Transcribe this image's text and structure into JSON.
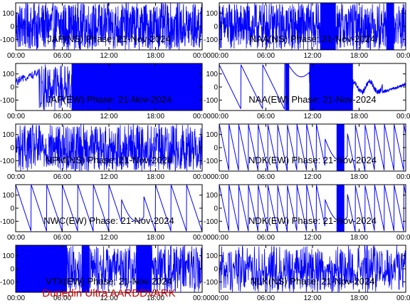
{
  "footer": "Dunedin Ultra AARDDVARK",
  "colors": {
    "trace": "#0000ff",
    "axes": "#000000",
    "footer": "#cc0000"
  },
  "chart_data": [
    {
      "type": "line",
      "title": "JAP(NS) Phase: 21-Nov-2024",
      "ylim": [
        -180,
        180
      ],
      "xlim": [
        "00:00",
        "24:00"
      ],
      "yticks": [
        "100",
        "0",
        "-100"
      ],
      "xticks": [
        "00:00",
        "06:00",
        "12:00",
        "18:00",
        "00:00"
      ],
      "pattern": "noise",
      "density": 14,
      "fill_ranges": []
    },
    {
      "type": "line",
      "title": "NAA(NS) Phase: 21-Nov-2024",
      "ylim": [
        -180,
        180
      ],
      "xlim": [
        "00:00",
        "24:00"
      ],
      "yticks": [
        "100",
        "0",
        "-100"
      ],
      "xticks": [
        "00:00",
        "06:00",
        "12:00",
        "18:00",
        "00:00"
      ],
      "pattern": "noise",
      "density": 14,
      "fill_ranges": [
        [
          13,
          15
        ],
        [
          21.5,
          22.5
        ]
      ]
    },
    {
      "type": "line",
      "title": "JAP(EW) Phase: 21-Nov-2024",
      "ylim": [
        -180,
        180
      ],
      "xlim": [
        "00:00",
        "24:00"
      ],
      "yticks": [
        "100",
        "0",
        "-100"
      ],
      "xticks": [
        "00:00",
        "06:00",
        "12:00",
        "18:00",
        "00:00"
      ],
      "pattern": "noise",
      "density": 10,
      "fill_ranges": [
        [
          7.2,
          24
        ]
      ]
    },
    {
      "type": "line",
      "title": "NAA(EW) Phase: 21-Nov-2024",
      "ylim": [
        -180,
        180
      ],
      "xlim": [
        "00:00",
        "24:00"
      ],
      "yticks": [
        "100",
        "0",
        "-100"
      ],
      "xticks": [
        "00:00",
        "06:00",
        "12:00",
        "18:00",
        "00:00"
      ],
      "pattern": "mixed",
      "fill_ranges": [
        [
          8.5,
          9
        ],
        [
          11.6,
          17.2
        ]
      ]
    },
    {
      "type": "line",
      "title": "NPM(NS) Phase: 21-Nov-2024",
      "ylim": [
        -180,
        180
      ],
      "xlim": [
        "00:00",
        "24:00"
      ],
      "yticks": [
        "100",
        "0",
        "-100"
      ],
      "xticks": [
        "00:00",
        "06:00",
        "12:00",
        "18:00",
        "00:00"
      ],
      "pattern": "noise",
      "density": 12,
      "fill_ranges": []
    },
    {
      "type": "line",
      "title": "NDK(EW) Phase: 21-Nov-2024",
      "ylim": [
        -180,
        180
      ],
      "xlim": [
        "00:00",
        "24:00"
      ],
      "yticks": [
        "100",
        "0",
        "-100"
      ],
      "xticks": [
        "00:00",
        "06:00",
        "12:00",
        "18:00",
        "00:00"
      ],
      "pattern": "saw",
      "period": 1.25,
      "fill_ranges": [
        [
          15.1,
          16.1
        ]
      ]
    },
    {
      "type": "line",
      "title": "NWC(EW) Phase: 21-Nov-2024",
      "ylim": [
        -180,
        180
      ],
      "xlim": [
        "00:00",
        "24:00"
      ],
      "yticks": [
        "100",
        "0",
        "-100"
      ],
      "xticks": [
        "00:00",
        "06:00",
        "12:00",
        "18:00",
        "00:00"
      ],
      "pattern": "saw",
      "period": 2.0,
      "fill_ranges": []
    },
    {
      "type": "line",
      "title": "NDK(EW) Phase: 21-Nov-2024",
      "ylim": [
        -180,
        180
      ],
      "xlim": [
        "00:00",
        "24:00"
      ],
      "yticks": [
        "100",
        "0",
        "-100"
      ],
      "xticks": [
        "00:00",
        "06:00",
        "12:00",
        "18:00",
        "00:00"
      ],
      "pattern": "saw",
      "period": 1.25,
      "fill_ranges": [
        [
          15.1,
          16.1
        ]
      ]
    },
    {
      "type": "line",
      "title": "VTX(EW) Phase: 21-Nov-2024",
      "ylim": [
        -180,
        180
      ],
      "xlim": [
        "00:00",
        "24:00"
      ],
      "yticks": [
        "100",
        "0",
        "-100"
      ],
      "xticks": [
        "00:00",
        "06:00",
        "12:00",
        "18:00",
        "00:00"
      ],
      "pattern": "noise",
      "density": 10,
      "fill_ranges": [
        [
          0,
          6.6
        ],
        [
          8.5,
          9.5
        ],
        [
          15.5,
          17.5
        ]
      ]
    },
    {
      "type": "line",
      "title": "NLK(NS) Phase: 21-Nov-2024",
      "ylim": [
        -180,
        180
      ],
      "xlim": [
        "00:00",
        "24:00"
      ],
      "yticks": [
        "100",
        "0",
        "-100"
      ],
      "xticks": [
        "00:00",
        "06:00",
        "12:00",
        "18:00",
        "00:00"
      ],
      "pattern": "noise",
      "density": 9,
      "fill_ranges": []
    }
  ]
}
